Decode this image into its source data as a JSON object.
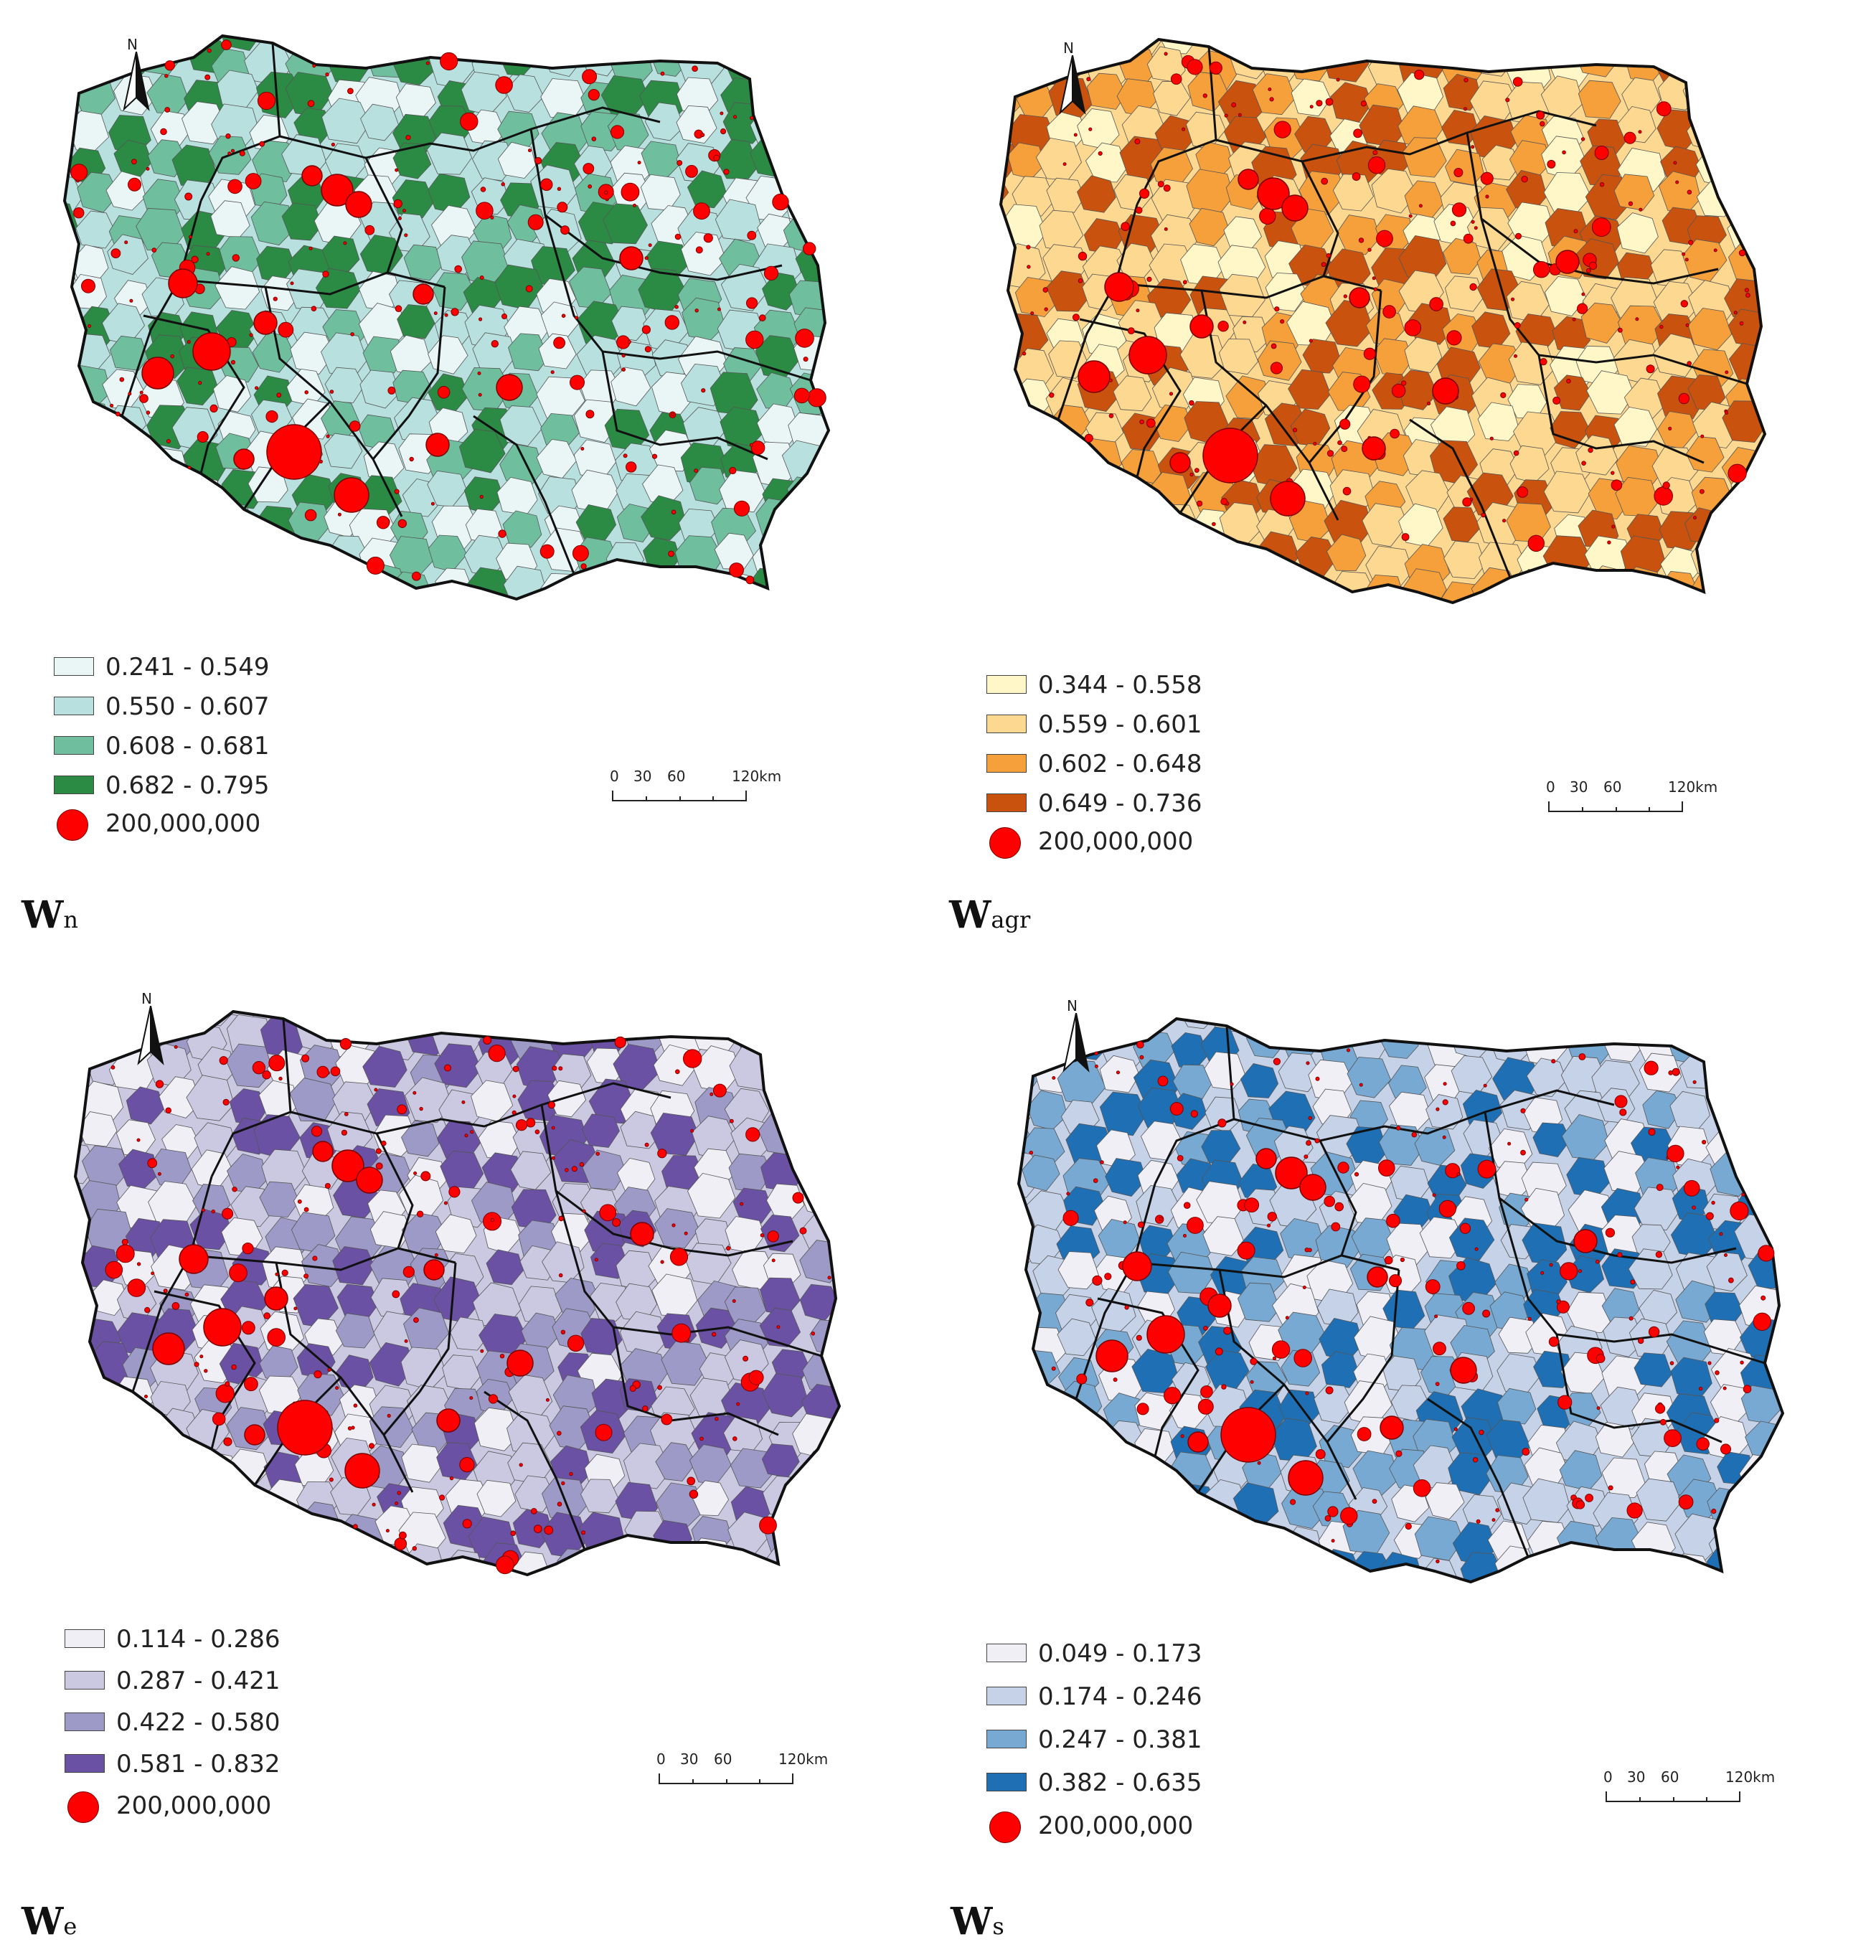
{
  "panels": [
    {
      "id": "wn",
      "caption_main": "W",
      "caption_sub": "n",
      "north_label": "N",
      "colors": [
        "#eaf6f6",
        "#b8e0df",
        "#6fbf9e",
        "#2b8a44"
      ],
      "legend": [
        {
          "label": "0.241 - 0.549",
          "color": "#eaf6f6"
        },
        {
          "label": "0.550 - 0.607",
          "color": "#b8e0df"
        },
        {
          "label": "0.608 - 0.681",
          "color": "#6fbf9e"
        },
        {
          "label": "0.682 - 0.795",
          "color": "#2b8a44"
        }
      ],
      "circle_label": "200,000,000",
      "scale": [
        "0",
        "30",
        "60",
        "120km"
      ]
    },
    {
      "id": "wagr",
      "caption_main": "W",
      "caption_sub": "agr",
      "north_label": "N",
      "colors": [
        "#fff7c8",
        "#fdd890",
        "#f6a03c",
        "#c9520f"
      ],
      "legend": [
        {
          "label": "0.344 - 0.558",
          "color": "#fff7c8"
        },
        {
          "label": "0.559 - 0.601",
          "color": "#fdd890"
        },
        {
          "label": "0.602 - 0.648",
          "color": "#f6a03c"
        },
        {
          "label": "0.649 - 0.736",
          "color": "#c9520f"
        }
      ],
      "circle_label": "200,000,000",
      "scale": [
        "0",
        "30",
        "60",
        "120km"
      ]
    },
    {
      "id": "we",
      "caption_main": "W",
      "caption_sub": "e",
      "north_label": "N",
      "colors": [
        "#f1eff6",
        "#cbc9e2",
        "#9e9ac8",
        "#6a51a3"
      ],
      "legend": [
        {
          "label": "0.114 - 0.286",
          "color": "#f1eff6"
        },
        {
          "label": "0.287 - 0.421",
          "color": "#cbc9e2"
        },
        {
          "label": "0.422 - 0.580",
          "color": "#9e9ac8"
        },
        {
          "label": "0.581 - 0.832",
          "color": "#6a51a3"
        }
      ],
      "circle_label": "200,000,000",
      "scale": [
        "0",
        "30",
        "60",
        "120km"
      ]
    },
    {
      "id": "ws",
      "caption_main": "W",
      "caption_sub": "s",
      "north_label": "N",
      "colors": [
        "#f0eff6",
        "#c6d2e8",
        "#77a9d3",
        "#1f6fb4"
      ],
      "legend": [
        {
          "label": "0.049 - 0.173",
          "color": "#f0eff6"
        },
        {
          "label": "0.174 - 0.246",
          "color": "#c6d2e8"
        },
        {
          "label": "0.247 - 0.381",
          "color": "#77a9d3"
        },
        {
          "label": "0.382 - 0.635",
          "color": "#1f6fb4"
        }
      ],
      "circle_label": "200,000,000",
      "scale": [
        "0",
        "30",
        "60",
        "120km"
      ]
    }
  ]
}
